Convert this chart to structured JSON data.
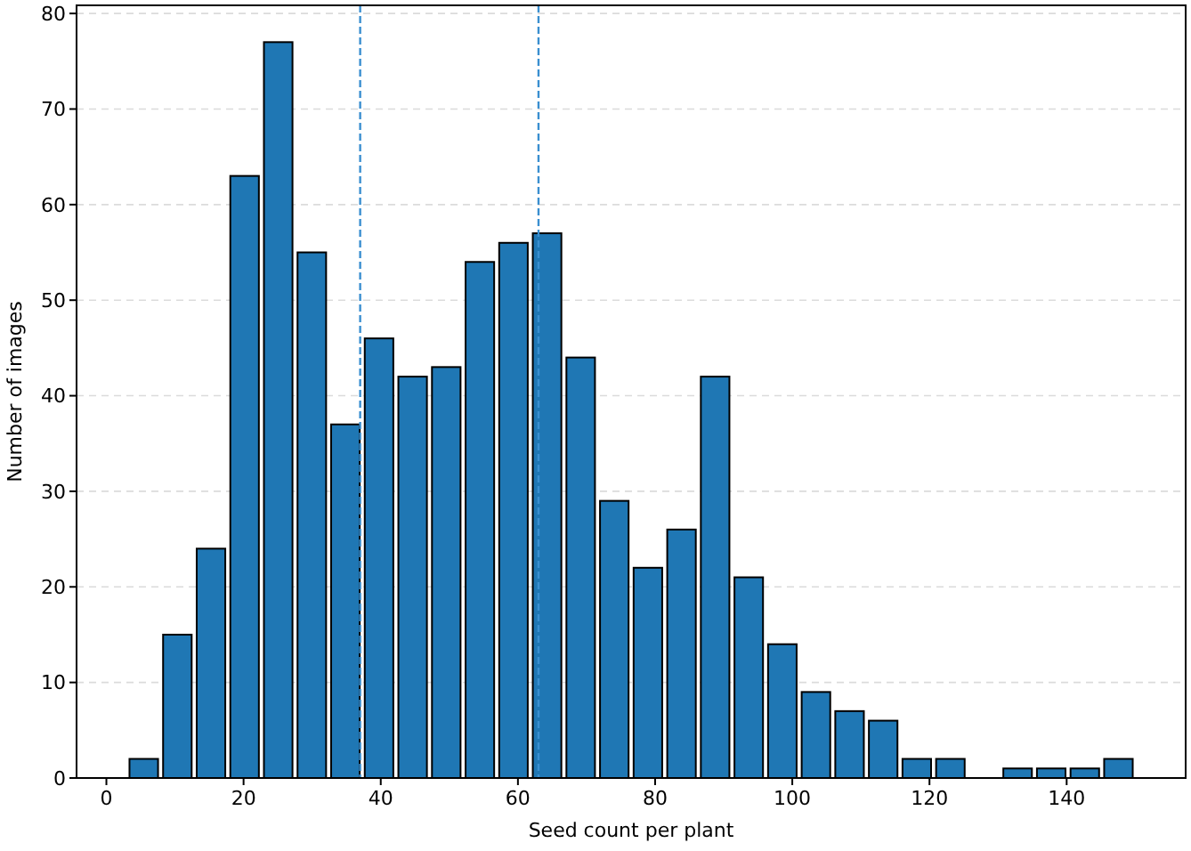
{
  "chart_data": {
    "type": "histogram",
    "xlabel": "Seed count per plant",
    "ylabel": "Number of images",
    "bins": [
      3,
      7.9,
      12.8,
      17.7,
      22.6,
      27.5,
      32.4,
      37.3,
      42.2,
      47.1,
      52,
      56.9,
      61.8,
      66.7,
      71.6,
      76.5,
      81.4,
      86.3,
      91.2,
      96.1,
      101,
      105.9,
      110.8,
      115.7,
      120.6,
      125.5,
      130.4,
      135.3,
      140.2,
      145.1,
      150
    ],
    "values": [
      2,
      15,
      24,
      63,
      77,
      55,
      37,
      46,
      42,
      43,
      54,
      56,
      57,
      44,
      29,
      22,
      26,
      42,
      21,
      14,
      9,
      7,
      6,
      2,
      2,
      0,
      1,
      1,
      1,
      2
    ],
    "color": "#1f77b4",
    "xlim": [
      -4.35,
      157.35
    ],
    "xticks": [
      0,
      20,
      40,
      60,
      80,
      100,
      120,
      140
    ],
    "ylim": [
      0,
      80.85
    ],
    "yticks": [
      0,
      10,
      20,
      30,
      40,
      50,
      60,
      70,
      80
    ],
    "grid": "y",
    "ref_lines": [
      {
        "axis": "x",
        "value": 37,
        "color": "#3a8fd0",
        "line_style": "dashed"
      },
      {
        "axis": "x",
        "value": 63,
        "color": "#3a8fd0",
        "line_style": "dashed"
      }
    ]
  }
}
